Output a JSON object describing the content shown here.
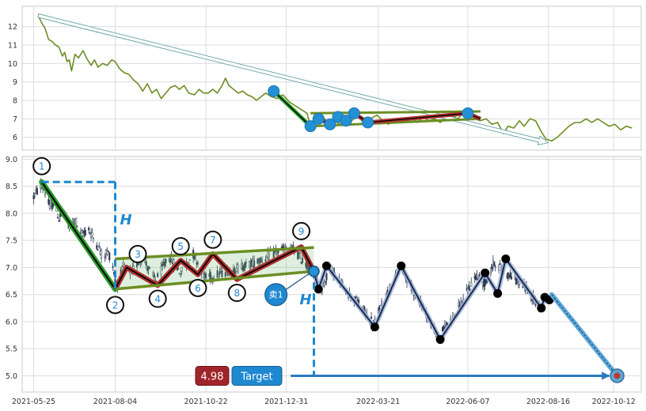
{
  "chart_data": [
    {
      "type": "line",
      "panel": "overview",
      "ylim": [
        5.3,
        13.1
      ],
      "y_ticks": [
        6,
        7,
        8,
        9,
        10,
        11,
        12
      ],
      "x_range": [
        "2021-05-15",
        "2022-11-05"
      ],
      "grid": true,
      "series": [
        {
          "color": "#6b8e23",
          "points": [
            [
              "2021-05-29",
              12.6
            ],
            [
              "2021-06-01",
              12.2
            ],
            [
              "2021-06-04",
              11.9
            ],
            [
              "2021-06-07",
              11.3
            ],
            [
              "2021-06-10",
              11.2
            ],
            [
              "2021-06-13",
              11.0
            ],
            [
              "2021-06-16",
              10.9
            ],
            [
              "2021-06-19",
              10.4
            ],
            [
              "2021-06-21",
              10.6
            ],
            [
              "2021-06-23",
              10.1
            ],
            [
              "2021-06-25",
              10.2
            ],
            [
              "2021-06-27",
              9.6
            ],
            [
              "2021-06-30",
              10.5
            ],
            [
              "2021-07-03",
              10.3
            ],
            [
              "2021-07-07",
              10.7
            ],
            [
              "2021-07-10",
              10.3
            ],
            [
              "2021-07-14",
              9.9
            ],
            [
              "2021-07-17",
              10.2
            ],
            [
              "2021-07-20",
              9.8
            ],
            [
              "2021-07-24",
              10.0
            ],
            [
              "2021-07-28",
              9.9
            ],
            [
              "2021-08-01",
              10.2
            ],
            [
              "2021-08-04",
              10.1
            ],
            [
              "2021-08-08",
              9.7
            ],
            [
              "2021-08-12",
              9.5
            ],
            [
              "2021-08-16",
              9.4
            ],
            [
              "2021-08-20",
              9.1
            ],
            [
              "2021-08-24",
              8.9
            ],
            [
              "2021-08-28",
              8.5
            ],
            [
              "2021-09-01",
              8.9
            ],
            [
              "2021-09-05",
              8.4
            ],
            [
              "2021-09-09",
              8.6
            ],
            [
              "2021-09-13",
              8.1
            ],
            [
              "2021-09-17",
              8.4
            ],
            [
              "2021-09-21",
              8.7
            ],
            [
              "2021-09-25",
              8.8
            ],
            [
              "2021-09-29",
              8.6
            ],
            [
              "2021-10-03",
              8.8
            ],
            [
              "2021-10-07",
              8.4
            ],
            [
              "2021-10-12",
              8.3
            ],
            [
              "2021-10-16",
              8.6
            ],
            [
              "2021-10-20",
              8.4
            ],
            [
              "2021-10-24",
              8.4
            ],
            [
              "2021-10-28",
              8.6
            ],
            [
              "2021-11-01",
              8.4
            ],
            [
              "2021-11-05",
              8.8
            ],
            [
              "2021-11-08",
              9.2
            ],
            [
              "2021-11-11",
              8.8
            ],
            [
              "2021-11-15",
              8.6
            ],
            [
              "2021-11-19",
              8.4
            ],
            [
              "2021-11-23",
              8.5
            ],
            [
              "2021-11-27",
              8.3
            ],
            [
              "2021-12-01",
              8.2
            ],
            [
              "2021-12-05",
              8.0
            ],
            [
              "2021-12-09",
              8.2
            ],
            [
              "2021-12-13",
              8.4
            ],
            [
              "2021-12-18",
              8.2
            ],
            [
              "2021-12-23",
              8.1
            ],
            [
              "2021-12-28",
              8.3
            ],
            [
              "2022-01-03",
              7.9
            ],
            [
              "2022-01-08",
              7.7
            ],
            [
              "2022-01-13",
              7.5
            ],
            [
              "2022-01-18",
              7.3
            ],
            [
              "2022-01-21",
              6.6
            ],
            [
              "2022-01-24",
              7.0
            ],
            [
              "2022-01-27",
              6.9
            ],
            [
              "2022-02-01",
              7.1
            ],
            [
              "2022-02-05",
              6.8
            ],
            [
              "2022-02-10",
              6.9
            ],
            [
              "2022-02-16",
              6.7
            ],
            [
              "2022-02-21",
              7.1
            ],
            [
              "2022-02-26",
              6.9
            ],
            [
              "2022-03-03",
              7.2
            ],
            [
              "2022-03-08",
              6.8
            ],
            [
              "2022-03-14",
              7.0
            ],
            [
              "2022-03-20",
              7.2
            ],
            [
              "2022-03-25",
              6.9
            ],
            [
              "2022-03-30",
              6.7
            ],
            [
              "2022-04-04",
              7.0
            ],
            [
              "2022-04-09",
              7.0
            ],
            [
              "2022-04-14",
              6.8
            ],
            [
              "2022-04-19",
              7.1
            ],
            [
              "2022-04-24",
              6.8
            ],
            [
              "2022-04-29",
              7.1
            ],
            [
              "2022-05-04",
              6.9
            ],
            [
              "2022-05-09",
              7.0
            ],
            [
              "2022-05-14",
              6.8
            ],
            [
              "2022-05-19",
              7.1
            ],
            [
              "2022-05-24",
              7.2
            ],
            [
              "2022-05-29",
              7.0
            ],
            [
              "2022-06-03",
              7.3
            ],
            [
              "2022-06-08",
              7.3
            ],
            [
              "2022-06-13",
              7.0
            ],
            [
              "2022-06-18",
              6.9
            ],
            [
              "2022-06-23",
              7.0
            ],
            [
              "2022-06-28",
              6.7
            ],
            [
              "2022-07-03",
              6.8
            ],
            [
              "2022-07-08",
              6.2
            ],
            [
              "2022-07-12",
              6.6
            ],
            [
              "2022-07-17",
              6.5
            ],
            [
              "2022-07-22",
              6.9
            ],
            [
              "2022-07-26",
              6.6
            ],
            [
              "2022-07-31",
              7.0
            ],
            [
              "2022-08-05",
              6.9
            ],
            [
              "2022-08-10",
              6.3
            ],
            [
              "2022-08-14",
              5.9
            ],
            [
              "2022-08-19",
              5.8
            ],
            [
              "2022-08-24",
              6.0
            ],
            [
              "2022-08-29",
              6.3
            ],
            [
              "2022-09-03",
              6.6
            ],
            [
              "2022-09-08",
              6.8
            ],
            [
              "2022-09-13",
              6.8
            ],
            [
              "2022-09-18",
              7.0
            ],
            [
              "2022-09-23",
              6.8
            ],
            [
              "2022-09-28",
              7.0
            ],
            [
              "2022-10-03",
              6.8
            ],
            [
              "2022-10-08",
              6.6
            ],
            [
              "2022-10-13",
              6.7
            ],
            [
              "2022-10-18",
              6.4
            ],
            [
              "2022-10-23",
              6.6
            ],
            [
              "2022-10-28",
              6.5
            ]
          ]
        }
      ],
      "trend_arrow": {
        "from": [
          "2021-05-29",
          12.6
        ],
        "to": [
          "2022-08-16",
          5.7
        ],
        "color": "#5f9ea0"
      },
      "drop_leg": {
        "from": [
          "2021-12-20",
          8.5
        ],
        "to": [
          "2022-01-21",
          6.6
        ],
        "color": "#2a9d2a"
      },
      "wedge": {
        "upper": [
          [
            "2022-01-21",
            7.3
          ],
          [
            "2022-06-18",
            7.4
          ]
        ],
        "lower": [
          [
            "2022-01-21",
            6.6
          ],
          [
            "2022-06-18",
            7.0
          ]
        ],
        "color": "#6b8e23"
      },
      "zigzag": {
        "points": [
          [
            "2022-01-21",
            6.6
          ],
          [
            "2022-01-28",
            7.0
          ],
          [
            "2022-02-07",
            6.7
          ],
          [
            "2022-02-14",
            7.1
          ],
          [
            "2022-02-21",
            6.9
          ],
          [
            "2022-02-28",
            7.3
          ],
          [
            "2022-03-12",
            6.8
          ],
          [
            "2022-06-07",
            7.3
          ],
          [
            "2022-06-18",
            7.0
          ]
        ],
        "color": "#b03030"
      },
      "markers": [
        [
          "2021-12-20",
          8.5
        ],
        [
          "2022-01-21",
          6.6
        ],
        [
          "2022-01-28",
          7.0
        ],
        [
          "2022-02-07",
          6.7
        ],
        [
          "2022-02-14",
          7.1
        ],
        [
          "2022-02-21",
          6.9
        ],
        [
          "2022-02-28",
          7.3
        ],
        [
          "2022-03-12",
          6.8
        ],
        [
          "2022-06-07",
          7.3
        ]
      ]
    },
    {
      "type": "candlestick",
      "panel": "detail",
      "ylim": [
        4.7,
        9.05
      ],
      "y_ticks": [
        "5.0",
        "5.5",
        "6.0",
        "6.5",
        "7.0",
        "7.5",
        "8.0",
        "8.5",
        "9.0"
      ],
      "x_range": [
        "2021-05-15",
        "2022-11-05"
      ],
      "x_tick_labels": [
        "2021-05-25",
        "2021-08-04",
        "2021-10-22",
        "2021-12-31",
        "2022-03-21",
        "2022-06-07",
        "2022-08-16",
        "2022-10-12"
      ],
      "grid": true,
      "price_path": [
        [
          "2021-05-25",
          8.3
        ],
        [
          "2021-06-01",
          8.55
        ],
        [
          "2021-06-04",
          8.4
        ],
        [
          "2021-06-08",
          8.1
        ],
        [
          "2021-06-12",
          8.2
        ],
        [
          "2021-06-16",
          7.9
        ],
        [
          "2021-06-20",
          8.05
        ],
        [
          "2021-06-25",
          7.75
        ],
        [
          "2021-06-30",
          7.9
        ],
        [
          "2021-07-05",
          7.6
        ],
        [
          "2021-07-12",
          7.7
        ],
        [
          "2021-07-20",
          7.4
        ],
        [
          "2021-07-24",
          7.2
        ],
        [
          "2021-07-28",
          7.3
        ],
        [
          "2021-08-01",
          7.15
        ],
        [
          "2021-08-05",
          6.65
        ],
        [
          "2021-08-11",
          7.0
        ],
        [
          "2021-08-18",
          6.9
        ],
        [
          "2021-08-27",
          7.2
        ],
        [
          "2021-09-08",
          6.75
        ],
        [
          "2021-09-20",
          7.2
        ],
        [
          "2021-09-30",
          6.9
        ],
        [
          "2021-10-11",
          7.25
        ],
        [
          "2021-10-22",
          6.8
        ],
        [
          "2021-11-05",
          6.9
        ],
        [
          "2021-11-20",
          7.0
        ],
        [
          "2021-12-05",
          7.1
        ],
        [
          "2021-12-15",
          7.2
        ],
        [
          "2021-12-25",
          7.3
        ],
        [
          "2022-01-05",
          7.35
        ],
        [
          "2022-01-15",
          7.1
        ],
        [
          "2022-01-24",
          6.9
        ],
        [
          "2022-01-31",
          6.6
        ],
        [
          "2022-02-07",
          7.0
        ],
        [
          "2022-02-20",
          6.6
        ],
        [
          "2022-03-05",
          6.3
        ],
        [
          "2022-03-17",
          5.95
        ],
        [
          "2022-03-28",
          6.5
        ],
        [
          "2022-04-10",
          7.0
        ],
        [
          "2022-04-20",
          6.6
        ],
        [
          "2022-05-01",
          6.2
        ],
        [
          "2022-05-12",
          5.7
        ],
        [
          "2022-05-22",
          6.0
        ],
        [
          "2022-06-03",
          6.4
        ],
        [
          "2022-06-14",
          6.85
        ],
        [
          "2022-06-22",
          6.7
        ],
        [
          "2022-06-30",
          7.1
        ],
        [
          "2022-07-10",
          6.9
        ],
        [
          "2022-07-24",
          6.7
        ],
        [
          "2022-08-01",
          6.5
        ],
        [
          "2022-08-08",
          6.3
        ]
      ],
      "events": [
        {
          "label": "1",
          "date": "2021-06-01",
          "price": 8.58
        },
        {
          "label": "2",
          "date": "2021-08-04",
          "price": 6.6
        },
        {
          "label": "3",
          "date": "2021-08-14",
          "price": 7.0
        },
        {
          "label": "4",
          "date": "2021-09-10",
          "price": 6.67
        },
        {
          "label": "5",
          "date": "2021-09-30",
          "price": 7.13
        },
        {
          "label": "6",
          "date": "2021-10-15",
          "price": 6.87
        },
        {
          "label": "7",
          "date": "2021-10-28",
          "price": 7.25
        },
        {
          "label": "8",
          "date": "2021-11-18",
          "price": 6.78
        },
        {
          "label": "9",
          "date": "2022-01-13",
          "price": 7.38
        }
      ],
      "pattern_lines": {
        "drop_leg": [
          [
            "2021-06-01",
            8.58
          ],
          [
            "2021-08-04",
            6.6
          ]
        ],
        "wedge_upper": [
          [
            "2021-08-04",
            7.16
          ],
          [
            "2022-01-24",
            7.37
          ]
        ],
        "wedge_lower": [
          [
            "2021-08-04",
            6.6
          ],
          [
            "2022-01-24",
            6.93
          ]
        ]
      },
      "height_marker": {
        "label": "H",
        "from_price": 8.58,
        "to_price": 6.6,
        "date": "2021-08-04",
        "start_date": "2021-06-01"
      },
      "projection_marker": {
        "label": "H",
        "date": "2022-01-24",
        "from_price": 6.93,
        "to_price": 5.0
      },
      "sell_signal": {
        "label": "卖1",
        "date": "2022-01-24",
        "price": 6.93,
        "bubble_date": "2021-12-22",
        "bubble_price": 6.5
      },
      "post_breakout_swings": [
        [
          "2022-01-24",
          6.93
        ],
        [
          "2022-01-28",
          6.6
        ],
        [
          "2022-02-04",
          7.03
        ],
        [
          "2022-03-18",
          5.9
        ],
        [
          "2022-04-10",
          7.03
        ],
        [
          "2022-05-14",
          5.67
        ],
        [
          "2022-06-22",
          6.9
        ],
        [
          "2022-07-03",
          6.52
        ],
        [
          "2022-07-10",
          7.16
        ],
        [
          "2022-08-10",
          6.25
        ],
        [
          "2022-08-13",
          6.45
        ],
        [
          "2022-08-17",
          6.4
        ]
      ],
      "forecast_arrow": {
        "from": [
          "2022-08-19",
          6.5
        ],
        "to": [
          "2022-10-15",
          5.0
        ]
      },
      "target": {
        "value_label": "4.98",
        "label": "Target",
        "price": 5.0,
        "date": "2022-10-15",
        "arrow_from_date": "2022-01-01"
      },
      "colors": {
        "drop_leg": "#2a9d2a",
        "wedge_lines": "#6b8e23",
        "zigzag": "#b03030",
        "swing_outline": "#1b2a4a",
        "accent_blue": "#1e88d0",
        "target_value_bg": "#a0252b",
        "target_label_bg": "#1e88d0",
        "candles": "#2b3950"
      }
    }
  ]
}
